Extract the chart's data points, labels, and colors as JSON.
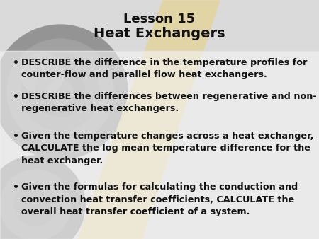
{
  "title_line1": "Lesson 15",
  "title_line2": "Heat Exchangers",
  "bullet_points": [
    "DESCRIBE the difference in the temperature profiles for\ncounter-flow and parallel flow heat exchangers.",
    "DESCRIBE the differences between regenerative and non-\nregenerative heat exchangers.",
    "Given the temperature changes across a heat exchanger,\nCALCULATE the log mean temperature difference for the\nheat exchanger.",
    "Given the formulas for calculating the conduction and\nconvection heat transfer coefficients, CALCULATE the\noverall heat transfer coefficient of a system."
  ],
  "bg_color": "#d4d4d4",
  "title_color": "#111111",
  "text_color": "#111111",
  "bullet_color": "#111111",
  "yellow_color": "#e8c84a",
  "white_color": "#f5f5f5",
  "title_fontsize": 13,
  "body_fontsize": 9.2,
  "fig_width": 4.5,
  "fig_height": 3.38,
  "dpi": 100
}
